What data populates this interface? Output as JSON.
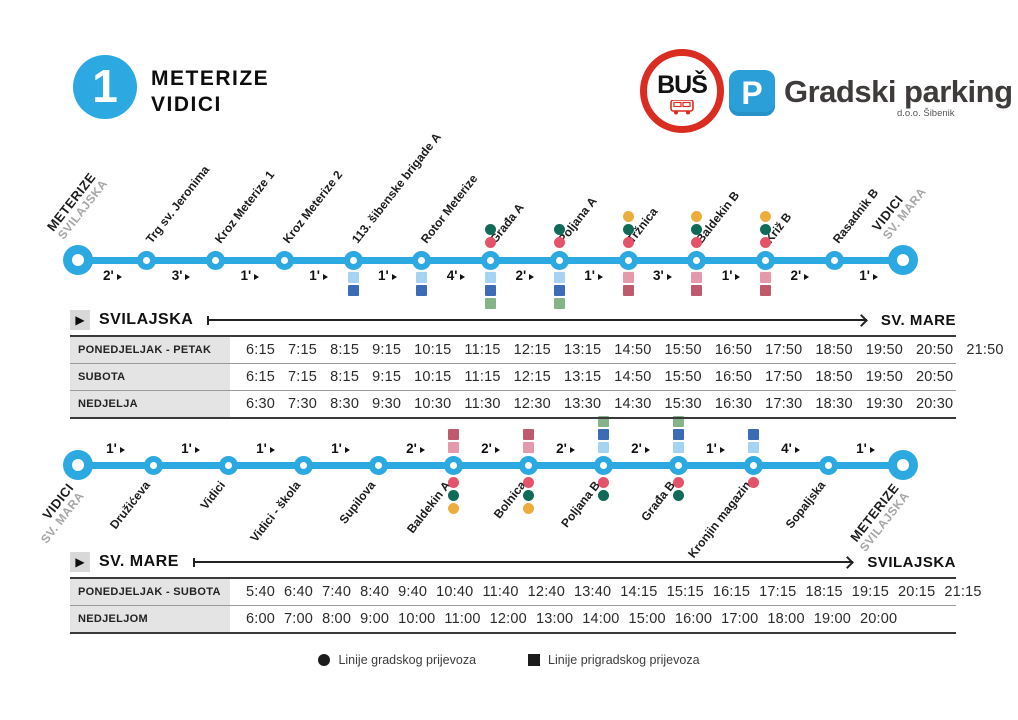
{
  "title": {
    "badge": "1",
    "line1": "METERIZE",
    "line2": "VIDICI"
  },
  "logos": {
    "bus_text": "BUŠ",
    "parking_icon": "P",
    "parking_title": "Gradski parking",
    "parking_sub": "d.o.o. Šibenik"
  },
  "colors": {
    "line_blue": "#2CA9E1",
    "teal": "#0F6B57",
    "red": "#E4536A",
    "yellow": "#EBAE3C",
    "lightblue": "#A6D3F2",
    "blue": "#3B6CB5",
    "green": "#86B489",
    "pink": "#E49AAB",
    "darkred": "#BF5A6C"
  },
  "icons": {
    "direction_play": "▶"
  },
  "routes": [
    {
      "stops": [
        {
          "name": "METERIZE",
          "sub": "SVILAJSKA",
          "terminal": true
        },
        {
          "name": "Trg sv. Jeronima"
        },
        {
          "name": "Kroz Meterize",
          "suffix": "1"
        },
        {
          "name": "Kroz Meterize",
          "suffix": "2"
        },
        {
          "name": "113. šibenske brigade",
          "suffix": "A",
          "squares": [
            "lightblue",
            "blue"
          ]
        },
        {
          "name": "Rotor Meterize",
          "squares": [
            "lightblue",
            "blue"
          ]
        },
        {
          "name": "Građa",
          "suffix": "A",
          "circles": [
            "teal",
            "red"
          ],
          "squares": [
            "lightblue",
            "blue",
            "green"
          ]
        },
        {
          "name": "Poljana",
          "suffix": "A",
          "circles": [
            "teal",
            "red"
          ],
          "squares": [
            "lightblue",
            "blue",
            "green"
          ]
        },
        {
          "name": "Tržnica",
          "circles": [
            "yellow",
            "teal",
            "red"
          ],
          "squares": [
            "pink",
            "darkred"
          ]
        },
        {
          "name": "Baldekin",
          "suffix": "B",
          "circles": [
            "yellow",
            "teal",
            "red"
          ],
          "squares": [
            "pink",
            "darkred"
          ]
        },
        {
          "name": "Križ",
          "suffix": "B",
          "circles": [
            "yellow",
            "teal",
            "red"
          ],
          "squares": [
            "pink",
            "darkred"
          ]
        },
        {
          "name": "Rasadnik",
          "suffix": "B"
        },
        {
          "name": "VIDICI",
          "sub": "SV. MARA",
          "terminal": true
        }
      ],
      "segment_times": [
        "2'",
        "3'",
        "1'",
        "1'",
        "1'",
        "4'",
        "2'",
        "1'",
        "3'",
        "1'",
        "2'",
        "1'"
      ]
    },
    {
      "stops": [
        {
          "name": "VIDICI",
          "sub": "SV. MARA",
          "terminal": true
        },
        {
          "name": "Družićeva"
        },
        {
          "name": "Vidici"
        },
        {
          "name": "Vidici - škola"
        },
        {
          "name": "Supilova"
        },
        {
          "name": "Baldekin",
          "suffix": "A",
          "squares": [
            "darkred",
            "pink"
          ],
          "circles": [
            "red",
            "teal",
            "yellow"
          ]
        },
        {
          "name": "Bolnica",
          "squares": [
            "darkred",
            "pink"
          ],
          "circles": [
            "red",
            "teal",
            "yellow"
          ]
        },
        {
          "name": "Poljana",
          "suffix": "B",
          "squares": [
            "green",
            "blue",
            "lightblue"
          ],
          "circles": [
            "red",
            "teal"
          ]
        },
        {
          "name": "Građa",
          "suffix": "B",
          "squares": [
            "green",
            "blue",
            "lightblue"
          ],
          "circles": [
            "red",
            "teal"
          ]
        },
        {
          "name": "Kronjin magazin",
          "squares": [
            "blue",
            "lightblue"
          ],
          "circles": [
            "red"
          ]
        },
        {
          "name": "Sopaljska"
        },
        {
          "name": "METERIZE",
          "sub": "SVILAJSKA",
          "terminal": true
        }
      ],
      "segment_times": [
        "1'",
        "1'",
        "1'",
        "1'",
        "2'",
        "2'",
        "2'",
        "2'",
        "1'",
        "4'",
        "1'"
      ]
    }
  ],
  "timetables": [
    {
      "from": "SVILAJSKA",
      "to": "SV. MARE",
      "rows": [
        {
          "label": "PONEDJELJAK - PETAK",
          "times": [
            "6:15",
            "7:15",
            "8:15",
            "9:15",
            "10:15",
            "11:15",
            "12:15",
            "13:15",
            "14:50",
            "15:50",
            "16:50",
            "17:50",
            "18:50",
            "19:50",
            "20:50",
            "21:50"
          ]
        },
        {
          "label": "SUBOTA",
          "times": [
            "6:15",
            "7:15",
            "8:15",
            "9:15",
            "10:15",
            "11:15",
            "12:15",
            "13:15",
            "14:50",
            "15:50",
            "16:50",
            "17:50",
            "18:50",
            "19:50",
            "20:50"
          ]
        },
        {
          "label": "NEDJELJA",
          "times": [
            "6:30",
            "7:30",
            "8:30",
            "9:30",
            "10:30",
            "11:30",
            "12:30",
            "13:30",
            "14:30",
            "15:30",
            "16:30",
            "17:30",
            "18:30",
            "19:30",
            "20:30"
          ]
        }
      ]
    },
    {
      "from": "SV. MARE",
      "to": "SVILAJSKA",
      "rows": [
        {
          "label": "PONEDJELJAK - SUBOTA",
          "times": [
            "5:40",
            "6:40",
            "7:40",
            "8:40",
            "9:40",
            "10:40",
            "11:40",
            "12:40",
            "13:40",
            "14:15",
            "15:15",
            "16:15",
            "17:15",
            "18:15",
            "19:15",
            "20:15",
            "21:15"
          ]
        },
        {
          "label": "NEDJELJOM",
          "times": [
            "6:00",
            "7:00",
            "8:00",
            "9:00",
            "10:00",
            "11:00",
            "12:00",
            "13:00",
            "14:00",
            "15:00",
            "16:00",
            "17:00",
            "18:00",
            "19:00",
            "20:00"
          ]
        }
      ]
    }
  ],
  "legend": {
    "city_label": "Linije gradskog prijevoza",
    "suburban_label": "Linije prigradskog prijevoza"
  }
}
